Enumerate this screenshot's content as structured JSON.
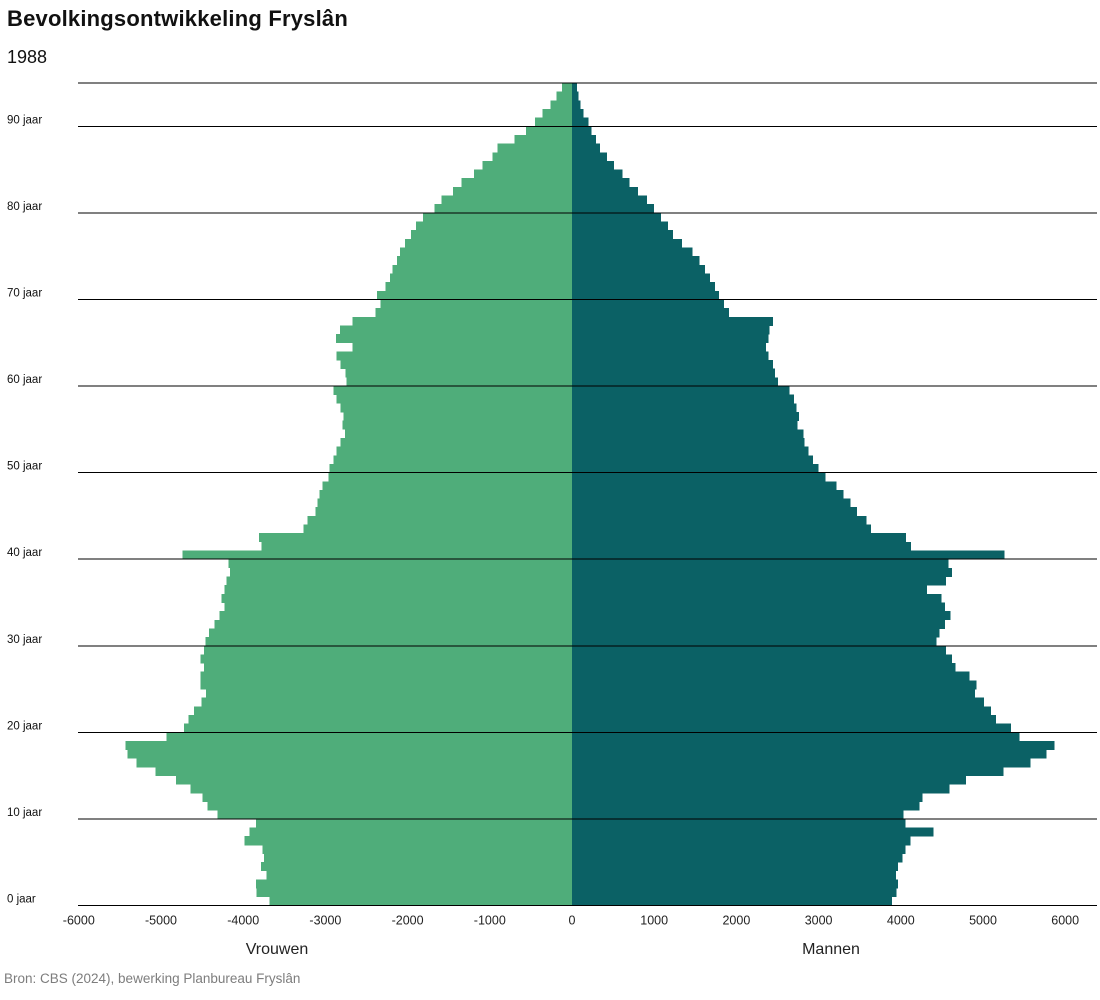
{
  "header": {
    "title": "Bevolkingsontwikkeling Fryslân",
    "subtitle": "1988"
  },
  "footer": {
    "source": "Bron: CBS (2024), bewerking Planbureau Fryslân"
  },
  "chart_data": {
    "type": "bar",
    "variant": "population-pyramid",
    "title": "Bevolkingsontwikkeling Fryslân",
    "subtitle": "1988",
    "age_min": 0,
    "age_max": 94,
    "grid": "horizontal-decade-lines",
    "x_axis": {
      "label_left": "Vrouwen",
      "label_right": "Mannen",
      "range": [
        -6200,
        6400
      ],
      "ticks": [
        {
          "value": -6000,
          "label": "-6000"
        },
        {
          "value": -5000,
          "label": "-5000"
        },
        {
          "value": -4000,
          "label": "-4000"
        },
        {
          "value": -3000,
          "label": "-3000"
        },
        {
          "value": -2000,
          "label": "-2000"
        },
        {
          "value": -1000,
          "label": "-1000"
        },
        {
          "value": 0,
          "label": "0"
        },
        {
          "value": 1000,
          "label": "1000"
        },
        {
          "value": 2000,
          "label": "2000"
        },
        {
          "value": 3000,
          "label": "3000"
        },
        {
          "value": 4000,
          "label": "4000"
        },
        {
          "value": 5000,
          "label": "5000"
        },
        {
          "value": 6000,
          "label": "6000"
        }
      ]
    },
    "y_axis": {
      "tick_ages": [
        0,
        10,
        20,
        30,
        40,
        50,
        60,
        70,
        80,
        90
      ],
      "tick_labels": [
        "0 jaar",
        "10 jaar",
        "20 jaar",
        "30 jaar",
        "40 jaar",
        "50 jaar",
        "60 jaar",
        "70 jaar",
        "80 jaar",
        "90 jaar"
      ]
    },
    "series": [
      {
        "name": "Vrouwen",
        "side": "left",
        "color": "#4fad7a",
        "values": [
          3680,
          3840,
          3845,
          3715,
          3785,
          3745,
          3765,
          3985,
          3925,
          3845,
          4315,
          4435,
          4495,
          4640,
          4820,
          5065,
          5300,
          5405,
          5430,
          4935,
          4720,
          4665,
          4600,
          4505,
          4455,
          4520,
          4520,
          4475,
          4520,
          4475,
          4460,
          4415,
          4350,
          4290,
          4230,
          4265,
          4230,
          4205,
          4160,
          4180,
          4740,
          3775,
          3805,
          3265,
          3220,
          3120,
          3095,
          3070,
          3035,
          2965,
          2950,
          2900,
          2865,
          2815,
          2760,
          2795,
          2780,
          2815,
          2865,
          2900,
          2745,
          2755,
          2815,
          2865,
          2670,
          2870,
          2820,
          2670,
          2390,
          2330,
          2370,
          2270,
          2215,
          2185,
          2130,
          2095,
          2030,
          1960,
          1900,
          1815,
          1670,
          1585,
          1450,
          1345,
          1195,
          1090,
          965,
          905,
          700,
          560,
          450,
          360,
          260,
          190,
          120
        ]
      },
      {
        "name": "Mannen",
        "side": "right",
        "color": "#0b6165",
        "values": [
          3895,
          3950,
          3965,
          3940,
          3965,
          4020,
          4055,
          4120,
          4400,
          4060,
          4035,
          4225,
          4265,
          4590,
          4795,
          5250,
          5575,
          5775,
          5870,
          5445,
          5340,
          5160,
          5100,
          5015,
          4905,
          4920,
          4835,
          4665,
          4620,
          4550,
          4435,
          4470,
          4535,
          4605,
          4535,
          4495,
          4320,
          4550,
          4620,
          4580,
          5260,
          4125,
          4065,
          3640,
          3580,
          3470,
          3385,
          3300,
          3215,
          3085,
          3000,
          2930,
          2875,
          2830,
          2815,
          2745,
          2760,
          2730,
          2700,
          2645,
          2505,
          2470,
          2445,
          2390,
          2360,
          2390,
          2405,
          2445,
          1910,
          1850,
          1790,
          1740,
          1680,
          1620,
          1550,
          1465,
          1340,
          1230,
          1170,
          1085,
          995,
          910,
          800,
          700,
          615,
          510,
          425,
          340,
          290,
          240,
          200,
          140,
          105,
          80,
          60
        ]
      }
    ],
    "style": {
      "gridline_color": "#000000",
      "tick_label_color": "#222222",
      "background_color": "#ffffff"
    }
  }
}
